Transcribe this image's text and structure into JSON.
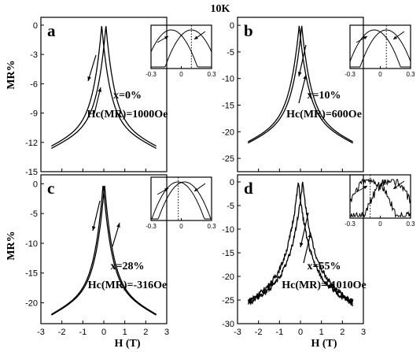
{
  "figure_title": "10K",
  "axis_labels": {
    "y": "MR%",
    "x": "H (T)"
  },
  "chart_data": [
    {
      "type": "line",
      "panel": "a",
      "position": "top-left",
      "xlim": [
        -3,
        3
      ],
      "ylim": [
        -15,
        0.8
      ],
      "xticks": [],
      "yticks": [
        0,
        -3,
        -6,
        -9,
        -12,
        -15
      ],
      "x_tick_labels": [],
      "y_tick_labels": [
        "0",
        "-3",
        "-6",
        "-9",
        "-12",
        "-15"
      ],
      "composition": "x=0%",
      "coercivity": "Hc(MR)=1000Oe",
      "hc_tesla": 0.1,
      "hc_sign": 1,
      "mr_min": -12.5,
      "width": 0.55,
      "noise": 0,
      "series": [
        {
          "x": [
            -2.5,
            -1.5,
            -1.0,
            -0.5,
            -0.2,
            0.0,
            0.1,
            0.2,
            0.5,
            1.0,
            1.5,
            2.5
          ],
          "y": [
            -12.5,
            -10.2,
            -8.3,
            -4.5,
            -1.4,
            -0.3,
            0.0,
            -0.3,
            -3.2,
            -7.7,
            -10.2,
            -12.5
          ]
        }
      ],
      "inset": {
        "xlim": [
          -0.3,
          0.3
        ],
        "xticks": [
          -0.3,
          0,
          0.3
        ],
        "tick_labels": [
          "-0.3",
          "0",
          "0.3"
        ],
        "dotted_x": 0.1
      }
    },
    {
      "type": "line",
      "panel": "b",
      "position": "top-right",
      "xlim": [
        -3,
        3
      ],
      "ylim": [
        -27.5,
        1.5
      ],
      "xticks": [],
      "yticks": [
        0,
        -5,
        -10,
        -15,
        -20,
        -25
      ],
      "x_tick_labels": [],
      "y_tick_labels": [
        "0",
        "-5",
        "-10",
        "-15",
        "-20",
        "-25"
      ],
      "composition": "x=10%",
      "coercivity": "Hc(MR)=600Oe",
      "hc_tesla": 0.06,
      "hc_sign": 1,
      "mr_min": -22,
      "width": 0.6,
      "noise": 0,
      "series": [
        {
          "x": [
            -2.5,
            -1.5,
            -1.0,
            -0.5,
            -0.2,
            0.0,
            0.06,
            0.2,
            0.5,
            1.0,
            1.5,
            2.5
          ],
          "y": [
            -22.0,
            -18.0,
            -14.5,
            -8.0,
            -2.5,
            -0.3,
            0.0,
            -0.5,
            -6.2,
            -13.9,
            -18.0,
            -22.0
          ]
        }
      ],
      "inset": {
        "xlim": [
          -0.3,
          0.3
        ],
        "xticks": [
          -0.3,
          0,
          0.3
        ],
        "tick_labels": [
          "-0.3",
          "0",
          "0.3"
        ],
        "dotted_x": 0.06
      }
    },
    {
      "type": "line",
      "panel": "c",
      "position": "bottom-left",
      "xlim": [
        -3,
        3
      ],
      "ylim": [
        -23.5,
        1.5
      ],
      "xticks": [
        -3,
        -2,
        -1,
        0,
        1,
        2,
        3
      ],
      "yticks": [
        0,
        -5,
        -10,
        -15,
        -20
      ],
      "x_tick_labels": [
        "-3",
        "-2",
        "-1",
        "0",
        "1",
        "2",
        "3"
      ],
      "y_tick_labels": [
        "0",
        "-5",
        "-10",
        "-15",
        "-20"
      ],
      "composition": "x=28%",
      "coercivity": "Hc(MR)=-316Oe",
      "hc_tesla": 0.0316,
      "hc_sign": -1,
      "mr_min": -22,
      "width": 0.55,
      "noise": 0,
      "series": [
        {
          "x": [
            -2.5,
            -1.5,
            -1.0,
            -0.5,
            -0.2,
            -0.03,
            0.0,
            0.2,
            0.5,
            1.0,
            1.5,
            2.5
          ],
          "y": [
            -22.0,
            -18.0,
            -14.5,
            -8.0,
            -2.6,
            0.0,
            -0.1,
            -2.9,
            -8.4,
            -14.7,
            -18.1,
            -22.0
          ]
        }
      ],
      "inset": {
        "xlim": [
          -0.3,
          0.3
        ],
        "xticks": [
          -0.3,
          0,
          0.3
        ],
        "tick_labels": [
          "-0.3",
          "0",
          "0.3"
        ],
        "dotted_x": -0.03
      }
    },
    {
      "type": "line",
      "panel": "d",
      "position": "bottom-right",
      "xlim": [
        -3,
        3
      ],
      "ylim": [
        -30,
        1.5
      ],
      "xticks": [
        -3,
        -2,
        -1,
        0,
        1,
        2,
        3
      ],
      "yticks": [
        0,
        -5,
        -10,
        -15,
        -20,
        -25,
        -30
      ],
      "x_tick_labels": [
        "-3",
        "-2",
        "-1",
        "0",
        "1",
        "2",
        "3"
      ],
      "y_tick_labels": [
        "0",
        "-5",
        "-10",
        "-15",
        "-20",
        "-25",
        "-30"
      ],
      "composition": "x=55%",
      "coercivity": "Hc(MR)=-1010Oe",
      "hc_tesla": 0.101,
      "hc_sign": -1,
      "mr_min": -25.5,
      "width": 0.7,
      "noise": 0.7,
      "series": [
        {
          "x": [
            -2.5,
            -1.5,
            -1.0,
            -0.5,
            -0.2,
            -0.1,
            0.0,
            0.2,
            0.5,
            1.0,
            1.5,
            2.5
          ],
          "y": [
            -25.5,
            -21.0,
            -17.5,
            -9.5,
            -2.5,
            0.0,
            -0.5,
            -5.0,
            -12.0,
            -18.0,
            -21.5,
            -25.5
          ]
        }
      ],
      "inset": {
        "xlim": [
          -0.3,
          0.3
        ],
        "xticks": [
          -0.3,
          0,
          0.3
        ],
        "tick_labels": [
          "-0.3",
          "0",
          "0.3"
        ],
        "dotted_x": -0.1
      }
    }
  ]
}
